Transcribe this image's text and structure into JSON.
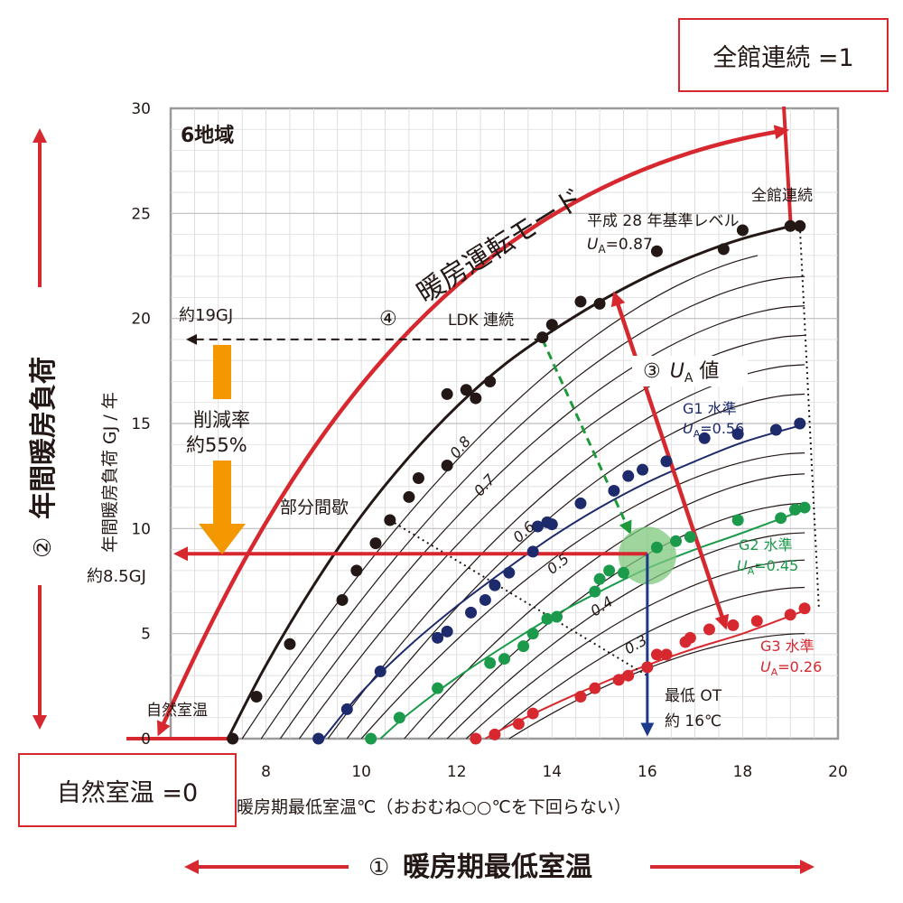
{
  "boxes": {
    "top_right": "全館連続 =1",
    "bottom_left": "自然室温 =0"
  },
  "side_labels": {
    "left_num": "②",
    "left_text": "年間暖房負荷",
    "bottom_num": "①",
    "bottom_text": "暖房期最低室温"
  },
  "chart_data": {
    "type": "line",
    "region_label": "6地域",
    "xlabel": "暖房期最低室温℃（おおむね○○℃を下回らない）",
    "ylabel": "年間暖房負荷 GJ / 年",
    "xlim": [
      6,
      20
    ],
    "ylim": [
      0,
      30
    ],
    "xticks": [
      8,
      10,
      12,
      14,
      16,
      18,
      20
    ],
    "yticks": [
      0,
      5,
      10,
      15,
      20,
      25,
      30
    ],
    "grid": true,
    "colors": {
      "black": "#231815",
      "navy": "#1d2a6b",
      "green": "#1a9a4a",
      "red": "#d7282f",
      "orange": "#f39800",
      "dash_green": "#1f9a3a",
      "dash_blue": "#1d3a8a"
    },
    "series": [
      {
        "key": "h28",
        "color": "black",
        "label": "平成 28 年基準レベル",
        "ua_label": "U",
        "ua_sub": "A",
        "ua_value": "=0.87",
        "points": [
          [
            7.3,
            0
          ],
          [
            7.8,
            2
          ],
          [
            8.5,
            4.5
          ],
          [
            9.6,
            6.6
          ],
          [
            9.9,
            8
          ],
          [
            10.3,
            9.3
          ],
          [
            10.6,
            10.4
          ],
          [
            11.0,
            11.5
          ],
          [
            11.2,
            12.4
          ],
          [
            11.8,
            13
          ],
          [
            11.8,
            16.4
          ],
          [
            12.2,
            16.6
          ],
          [
            12.4,
            16.2
          ],
          [
            12.7,
            17
          ],
          [
            13.8,
            19.1
          ],
          [
            14.0,
            19.7
          ],
          [
            14.6,
            20.8
          ],
          [
            15.0,
            20.7
          ],
          [
            16.2,
            23.2
          ],
          [
            17.6,
            23.3
          ],
          [
            18.0,
            24.2
          ],
          [
            19.0,
            24.4
          ],
          [
            19.2,
            24.4
          ]
        ],
        "curve": [
          [
            7.2,
            0
          ],
          [
            8.0,
            3.5
          ],
          [
            9.0,
            7.3
          ],
          [
            10.0,
            10.6
          ],
          [
            11.0,
            13.4
          ],
          [
            12.0,
            15.8
          ],
          [
            13.0,
            17.8
          ],
          [
            14.0,
            19.4
          ],
          [
            15.0,
            20.8
          ],
          [
            16.0,
            22.0
          ],
          [
            17.0,
            23.0
          ],
          [
            18.0,
            23.8
          ],
          [
            19.2,
            24.5
          ]
        ]
      },
      {
        "key": "g1",
        "color": "navy",
        "label": "G1 水準",
        "ua_label": "U",
        "ua_sub": "A",
        "ua_value": "=0.56",
        "points": [
          [
            9.1,
            0
          ],
          [
            9.7,
            1.4
          ],
          [
            10.4,
            3.2
          ],
          [
            11.6,
            4.8
          ],
          [
            11.8,
            5.1
          ],
          [
            12.3,
            6.0
          ],
          [
            12.6,
            6.6
          ],
          [
            12.8,
            7.3
          ],
          [
            13.1,
            7.9
          ],
          [
            13.6,
            8.9
          ],
          [
            13.7,
            10.1
          ],
          [
            13.9,
            10.3
          ],
          [
            14.0,
            10.2
          ],
          [
            14.6,
            11.2
          ],
          [
            15.3,
            11.8
          ],
          [
            15.6,
            12.5
          ],
          [
            15.9,
            12.8
          ],
          [
            16.4,
            13.2
          ],
          [
            17.2,
            14.3
          ],
          [
            17.9,
            14.5
          ],
          [
            18.7,
            14.7
          ],
          [
            19.2,
            15.0
          ]
        ],
        "curve": [
          [
            9.2,
            0
          ],
          [
            10.0,
            2.2
          ],
          [
            11.0,
            4.4
          ],
          [
            12.0,
            6.3
          ],
          [
            13.0,
            8.0
          ],
          [
            14.0,
            9.6
          ],
          [
            15.0,
            11.0
          ],
          [
            16.0,
            12.2
          ],
          [
            17.0,
            13.2
          ],
          [
            18.0,
            14.1
          ],
          [
            19.2,
            14.9
          ]
        ]
      },
      {
        "key": "g2",
        "color": "green",
        "label": "G2 水準",
        "ua_label": "U",
        "ua_sub": "A",
        "ua_value": "=0.45",
        "points": [
          [
            10.2,
            0
          ],
          [
            10.8,
            1.0
          ],
          [
            11.6,
            2.4
          ],
          [
            12.7,
            3.6
          ],
          [
            13.0,
            3.8
          ],
          [
            13.4,
            4.4
          ],
          [
            13.6,
            5.0
          ],
          [
            13.9,
            5.7
          ],
          [
            14.1,
            5.8
          ],
          [
            14.9,
            7.0
          ],
          [
            15.0,
            7.6
          ],
          [
            15.2,
            8.0
          ],
          [
            15.5,
            7.9
          ],
          [
            16.2,
            9.1
          ],
          [
            16.6,
            9.4
          ],
          [
            16.9,
            9.6
          ],
          [
            17.9,
            10.4
          ],
          [
            18.8,
            10.5
          ],
          [
            19.1,
            10.9
          ],
          [
            19.3,
            11.0
          ]
        ],
        "curve": [
          [
            10.4,
            0
          ],
          [
            11.0,
            1.2
          ],
          [
            12.0,
            2.9
          ],
          [
            13.0,
            4.4
          ],
          [
            14.0,
            5.8
          ],
          [
            15.0,
            7.0
          ],
          [
            16.0,
            8.1
          ],
          [
            17.0,
            9.0
          ],
          [
            18.0,
            9.8
          ],
          [
            19.3,
            10.9
          ]
        ]
      },
      {
        "key": "g3",
        "color": "red",
        "label": "G3 水準",
        "ua_label": "U",
        "ua_sub": "A",
        "ua_value": "=0.26",
        "points": [
          [
            12.4,
            0
          ],
          [
            12.8,
            0.2
          ],
          [
            13.3,
            0.7
          ],
          [
            13.6,
            1.2
          ],
          [
            14.6,
            2.0
          ],
          [
            14.9,
            2.4
          ],
          [
            15.4,
            2.8
          ],
          [
            15.6,
            3.0
          ],
          [
            16.0,
            3.4
          ],
          [
            16.2,
            4.0
          ],
          [
            16.4,
            4.0
          ],
          [
            16.8,
            4.6
          ],
          [
            16.9,
            4.8
          ],
          [
            17.3,
            5.2
          ],
          [
            17.8,
            5.4
          ],
          [
            18.3,
            5.6
          ],
          [
            19.0,
            5.9
          ],
          [
            19.3,
            6.2
          ]
        ],
        "curve": [
          [
            12.6,
            0
          ],
          [
            13.0,
            0.5
          ],
          [
            14.0,
            1.6
          ],
          [
            15.0,
            2.6
          ],
          [
            16.0,
            3.5
          ],
          [
            17.0,
            4.3
          ],
          [
            18.0,
            5.0
          ],
          [
            19.3,
            6.1
          ]
        ]
      }
    ],
    "background_curves": [
      {
        "x0": 7.5,
        "peak": 23.3
      },
      {
        "x0": 7.9,
        "peak": 22.0
      },
      {
        "x0": 8.3,
        "peak": 20.6
      },
      {
        "x0": 8.7,
        "peak": 19.2
      },
      {
        "x0": 9.3,
        "peak": 17.8
      },
      {
        "x0": 9.7,
        "peak": 16.4
      },
      {
        "x0": 10.0,
        "peak": 13.6
      },
      {
        "x0": 10.9,
        "peak": 12.6
      },
      {
        "x0": 11.4,
        "peak": 11.2
      },
      {
        "x0": 11.8,
        "peak": 9.8
      },
      {
        "x0": 12.2,
        "peak": 8.5
      },
      {
        "x0": 12.7,
        "peak": 7.2
      },
      {
        "x0": 13.1,
        "peak": 5.0
      }
    ],
    "contour_labels": [
      {
        "text": "0.8",
        "x": 12.0,
        "y": 13.3,
        "angle": -50
      },
      {
        "text": "0.7",
        "x": 12.5,
        "y": 11.5,
        "angle": -48
      },
      {
        "text": "0.6",
        "x": 13.3,
        "y": 9.3,
        "angle": -42
      },
      {
        "text": "0.5",
        "x": 14.0,
        "y": 7.8,
        "angle": -38
      },
      {
        "text": "0.4",
        "x": 14.9,
        "y": 5.8,
        "angle": -34
      },
      {
        "text": "0.3",
        "x": 15.6,
        "y": 4.0,
        "angle": -30
      }
    ],
    "annotations": {
      "mode_arrow": "暖房運転モード",
      "full_building": "全館連続",
      "natural_temp": "自然室温",
      "partial": "部分間歇",
      "ldk_num": "④",
      "ldk": "LDK 連続",
      "ua_num": "③",
      "ua_label": "U",
      "ua_sub": "A",
      "ua_suffix": " 値",
      "approx_19": "約19GJ",
      "approx_85": "約8.5GJ",
      "reduction_1": "削減率",
      "reduction_2": "約55%",
      "min_ot_1": "最低 OT",
      "min_ot_2": "約 16℃"
    },
    "markers": {
      "ldk_point": [
        13.8,
        19.0
      ],
      "target_point": [
        16.0,
        8.8
      ],
      "dotted_partial_start": [
        10.6,
        10.4
      ],
      "dotted_partial_end": [
        16.0,
        3.0
      ],
      "dotted_full_start": [
        19.2,
        24.4
      ],
      "dotted_full_end": [
        19.6,
        6.2
      ]
    }
  }
}
